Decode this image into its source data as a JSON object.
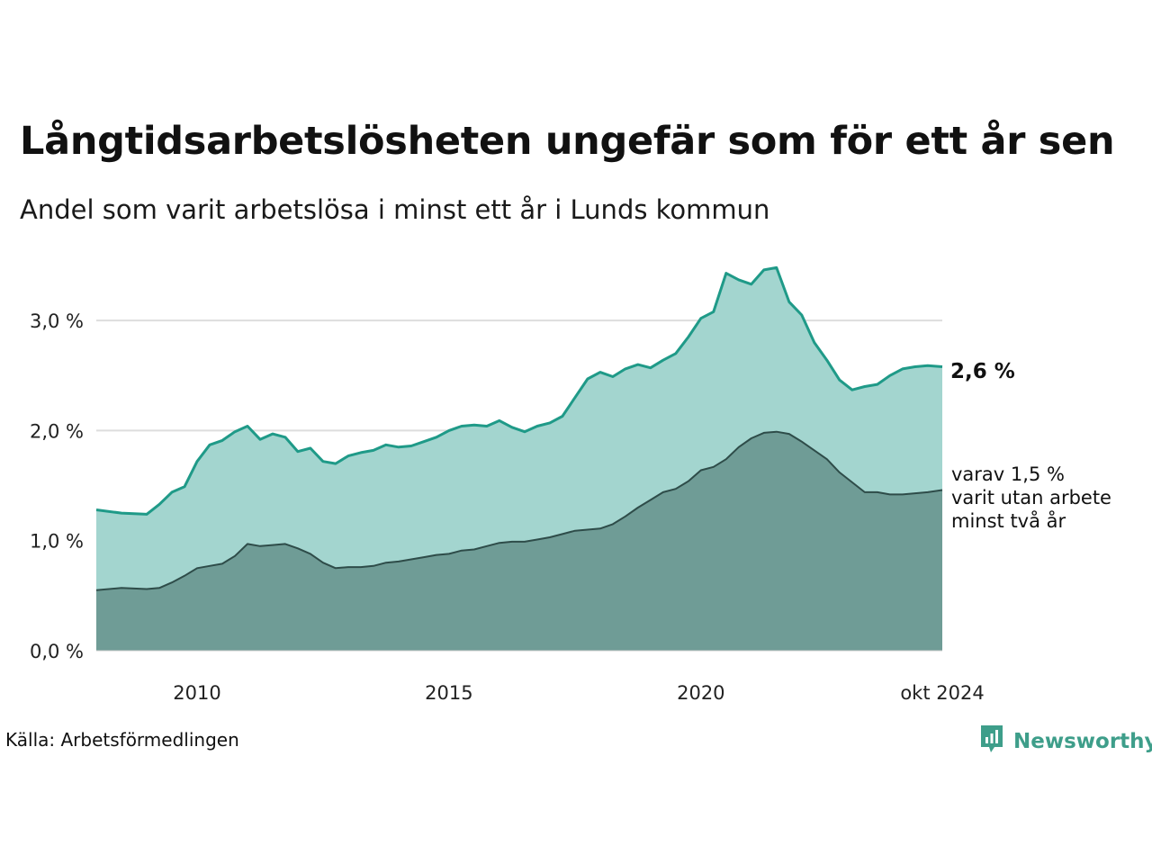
{
  "title": "Långtidsarbetslösheten ungefär som för ett år sen",
  "subtitle": "Andel som varit arbetslösa i minst ett år i Lunds kommun",
  "source": "Källa: Arbetsförmedlingen",
  "brand": {
    "name": "Newsworthy",
    "icon": "newsworthy-logo-icon"
  },
  "colors": {
    "area_total": "#a3d5cf",
    "line_total": "#1f9a88",
    "area_two_years": "#6f9c96",
    "line_two_years": "#2e4c49",
    "grid": "#dddddd"
  },
  "chart_data": {
    "type": "area",
    "title": "Långtidsarbetslösheten ungefär som för ett år sen",
    "subtitle": "Andel som varit arbetslösa i minst ett år i Lunds kommun",
    "xlabel": "",
    "ylabel": "",
    "ylim": [
      0,
      3.5
    ],
    "y_ticks": [
      {
        "value": 0,
        "label": "0,0 %"
      },
      {
        "value": 1,
        "label": "1,0 %"
      },
      {
        "value": 2,
        "label": "2,0 %"
      },
      {
        "value": 3,
        "label": "3,0 %"
      }
    ],
    "xlim": [
      2008.0,
      2024.79
    ],
    "x_ticks": [
      {
        "value": 2010,
        "label": "2010"
      },
      {
        "value": 2015,
        "label": "2015"
      },
      {
        "value": 2020,
        "label": "2020"
      },
      {
        "value": 2024.79,
        "label": "okt 2024"
      }
    ],
    "grid": true,
    "series": [
      {
        "x": [
          2008.0,
          2008.5,
          2009.0,
          2009.25,
          2009.5,
          2009.75,
          2010.0,
          2010.25,
          2010.5,
          2010.75,
          2011.0,
          2011.25,
          2011.5,
          2011.75,
          2012.0,
          2012.25,
          2012.5,
          2012.75,
          2013.0,
          2013.25,
          2013.5,
          2013.75,
          2014.0,
          2014.25,
          2014.5,
          2014.75,
          2015.0,
          2015.25,
          2015.5,
          2015.75,
          2016.0,
          2016.25,
          2016.5,
          2016.75,
          2017.0,
          2017.25,
          2017.5,
          2017.75,
          2018.0,
          2018.25,
          2018.5,
          2018.75,
          2019.0,
          2019.25,
          2019.5,
          2019.75,
          2020.0,
          2020.25,
          2020.5,
          2020.75,
          2021.0,
          2021.25,
          2021.5,
          2021.75,
          2022.0,
          2022.25,
          2022.5,
          2022.75,
          2023.0,
          2023.25,
          2023.5,
          2023.75,
          2024.0,
          2024.25,
          2024.5,
          2024.79
        ],
        "values": [
          1.28,
          1.25,
          1.24,
          1.33,
          1.44,
          1.49,
          1.72,
          1.87,
          1.91,
          1.99,
          2.04,
          1.92,
          1.97,
          1.94,
          1.81,
          1.84,
          1.72,
          1.7,
          1.77,
          1.8,
          1.82,
          1.87,
          1.85,
          1.86,
          1.9,
          1.94,
          2.0,
          2.04,
          2.05,
          2.04,
          2.09,
          2.03,
          1.99,
          2.04,
          2.07,
          2.13,
          2.3,
          2.47,
          2.53,
          2.49,
          2.56,
          2.6,
          2.57,
          2.64,
          2.7,
          2.85,
          3.02,
          3.08,
          3.43,
          3.37,
          3.33,
          3.46,
          3.48,
          3.17,
          3.05,
          2.8,
          2.64,
          2.46,
          2.37,
          2.4,
          2.42,
          2.5,
          2.56,
          2.58,
          2.59,
          2.58
        ]
      },
      {
        "x": [
          2008.0,
          2008.5,
          2009.0,
          2009.25,
          2009.5,
          2009.75,
          2010.0,
          2010.25,
          2010.5,
          2010.75,
          2011.0,
          2011.25,
          2011.5,
          2011.75,
          2012.0,
          2012.25,
          2012.5,
          2012.75,
          2013.0,
          2013.25,
          2013.5,
          2013.75,
          2014.0,
          2014.25,
          2014.5,
          2014.75,
          2015.0,
          2015.25,
          2015.5,
          2015.75,
          2016.0,
          2016.25,
          2016.5,
          2016.75,
          2017.0,
          2017.25,
          2017.5,
          2017.75,
          2018.0,
          2018.25,
          2018.5,
          2018.75,
          2019.0,
          2019.25,
          2019.5,
          2019.75,
          2020.0,
          2020.25,
          2020.5,
          2020.75,
          2021.0,
          2021.25,
          2021.5,
          2021.75,
          2022.0,
          2022.25,
          2022.5,
          2022.75,
          2023.0,
          2023.25,
          2023.5,
          2023.75,
          2024.0,
          2024.25,
          2024.5,
          2024.79
        ],
        "values": [
          0.55,
          0.57,
          0.56,
          0.57,
          0.62,
          0.68,
          0.75,
          0.77,
          0.79,
          0.86,
          0.97,
          0.95,
          0.96,
          0.97,
          0.93,
          0.88,
          0.8,
          0.75,
          0.76,
          0.76,
          0.77,
          0.8,
          0.81,
          0.83,
          0.85,
          0.87,
          0.88,
          0.91,
          0.92,
          0.95,
          0.98,
          0.99,
          0.99,
          1.01,
          1.03,
          1.06,
          1.09,
          1.1,
          1.11,
          1.15,
          1.22,
          1.3,
          1.37,
          1.44,
          1.47,
          1.54,
          1.64,
          1.67,
          1.74,
          1.85,
          1.93,
          1.98,
          1.99,
          1.97,
          1.9,
          1.82,
          1.74,
          1.62,
          1.53,
          1.44,
          1.44,
          1.42,
          1.42,
          1.43,
          1.44,
          1.46
        ]
      }
    ],
    "labels": {
      "end_value": "2,6 %",
      "annotation": [
        "varav 1,5 %",
        "varit utan arbete",
        "minst två år"
      ]
    }
  }
}
